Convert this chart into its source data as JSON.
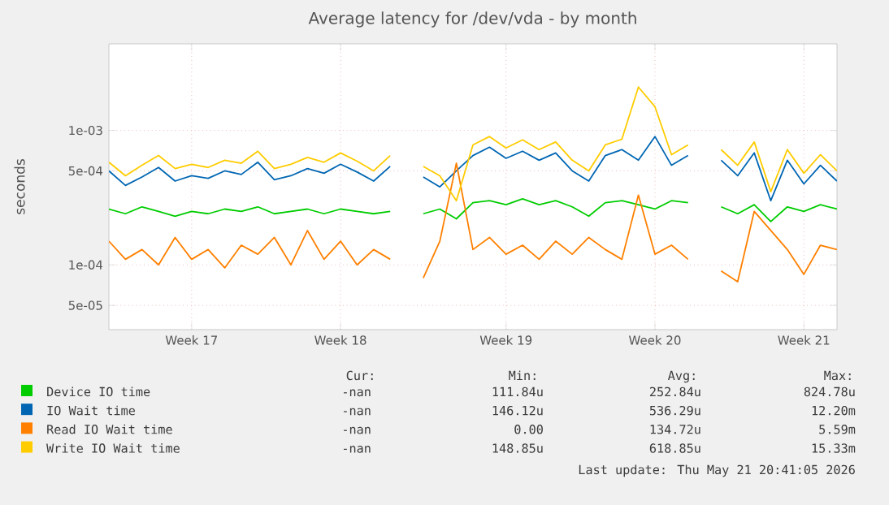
{
  "chart_data": {
    "type": "line",
    "title": "Average latency for /dev/vda - by month",
    "ylabel": "seconds",
    "log": "y",
    "grid": true,
    "legend": "bottom",
    "marker": "none",
    "line_style": "solid",
    "categories": [
      null,
      null,
      null,
      null,
      null,
      "Week 17",
      null,
      null,
      null,
      null,
      null,
      null,
      null,
      null,
      "Week 18",
      null,
      null,
      null,
      null,
      null,
      null,
      null,
      null,
      null,
      "Week 19",
      null,
      null,
      null,
      null,
      null,
      null,
      null,
      null,
      "Week 20",
      null,
      null,
      null,
      null,
      null,
      null,
      null,
      null,
      "Week 21",
      null,
      null
    ],
    "ylim": [
      3.3e-05,
      0.0044
    ],
    "yticks": [
      {
        "value": 5e-05,
        "label": "5e-05"
      },
      {
        "value": 0.0001,
        "label": "1e-04"
      },
      {
        "value": 0.0005,
        "label": "5e-04"
      },
      {
        "value": 0.001,
        "label": "1e-03"
      }
    ],
    "series": [
      {
        "name": "Device IO time",
        "color": "#00cc00",
        "values": [
          0.00026,
          0.00024,
          0.00027,
          0.00025,
          0.00023,
          0.00025,
          0.00024,
          0.00026,
          0.00025,
          0.00027,
          0.00024,
          0.00025,
          0.00026,
          0.00024,
          0.00026,
          0.00025,
          0.00024,
          0.00025,
          null,
          0.00024,
          0.00026,
          0.00022,
          0.00029,
          0.0003,
          0.00028,
          0.00031,
          0.00028,
          0.0003,
          0.00027,
          0.00023,
          0.00029,
          0.0003,
          0.00028,
          0.00026,
          0.0003,
          0.00029,
          null,
          0.00027,
          0.00024,
          0.00028,
          0.00021,
          0.00027,
          0.00025,
          0.00028,
          0.00026
        ]
      },
      {
        "name": "IO Wait time",
        "color": "#0066b3",
        "values": [
          0.0005,
          0.00039,
          0.00045,
          0.00053,
          0.00042,
          0.00046,
          0.00044,
          0.0005,
          0.00047,
          0.00058,
          0.00043,
          0.00046,
          0.00052,
          0.00048,
          0.00056,
          0.00049,
          0.00042,
          0.00054,
          null,
          0.00045,
          0.00038,
          0.0005,
          0.00065,
          0.00075,
          0.00062,
          0.0007,
          0.0006,
          0.00068,
          0.0005,
          0.00042,
          0.00065,
          0.00072,
          0.0006,
          0.0009,
          0.00055,
          0.00065,
          null,
          0.0006,
          0.00046,
          0.00068,
          0.0003,
          0.0006,
          0.0004,
          0.00055,
          0.00042
        ]
      },
      {
        "name": "Read IO Wait time",
        "color": "#ff8000",
        "values": [
          0.00015,
          0.00011,
          0.00013,
          0.0001,
          0.00016,
          0.00011,
          0.00013,
          9.5e-05,
          0.00014,
          0.00012,
          0.00016,
          0.0001,
          0.00018,
          0.00011,
          0.00015,
          0.0001,
          0.00013,
          0.00011,
          null,
          8e-05,
          0.00015,
          0.00057,
          0.00013,
          0.00016,
          0.00012,
          0.00014,
          0.00011,
          0.00015,
          0.00012,
          0.00016,
          0.00013,
          0.00011,
          0.00033,
          0.00012,
          0.00014,
          0.00011,
          null,
          9e-05,
          7.5e-05,
          0.00025,
          0.00018,
          0.00013,
          8.5e-05,
          0.00014,
          0.00013
        ]
      },
      {
        "name": "Write IO Wait time",
        "color": "#ffcc00",
        "values": [
          0.00058,
          0.00046,
          0.00055,
          0.00065,
          0.00052,
          0.00056,
          0.00053,
          0.0006,
          0.00057,
          0.0007,
          0.00052,
          0.00056,
          0.00063,
          0.00058,
          0.00068,
          0.00059,
          0.0005,
          0.00065,
          null,
          0.00054,
          0.00046,
          0.0003,
          0.00078,
          0.0009,
          0.00074,
          0.00085,
          0.00072,
          0.00082,
          0.0006,
          0.0005,
          0.00078,
          0.00086,
          0.0021,
          0.0015,
          0.00066,
          0.00078,
          null,
          0.00072,
          0.00055,
          0.00082,
          0.00035,
          0.00072,
          0.00048,
          0.00066,
          0.0005
        ]
      }
    ],
    "annotations": [
      "Cur:",
      "Min:",
      "Avg:",
      "Max:",
      "-nan",
      "111.84u",
      "252.84u",
      "824.78u",
      "-nan",
      "146.12u",
      "536.29u",
      "12.20m",
      "-nan",
      "0.00",
      "134.72u",
      "5.59m",
      "-nan",
      "148.85u",
      "618.85u",
      "15.33m",
      "Last update: Thu May 21 20:41:05 2026"
    ]
  }
}
